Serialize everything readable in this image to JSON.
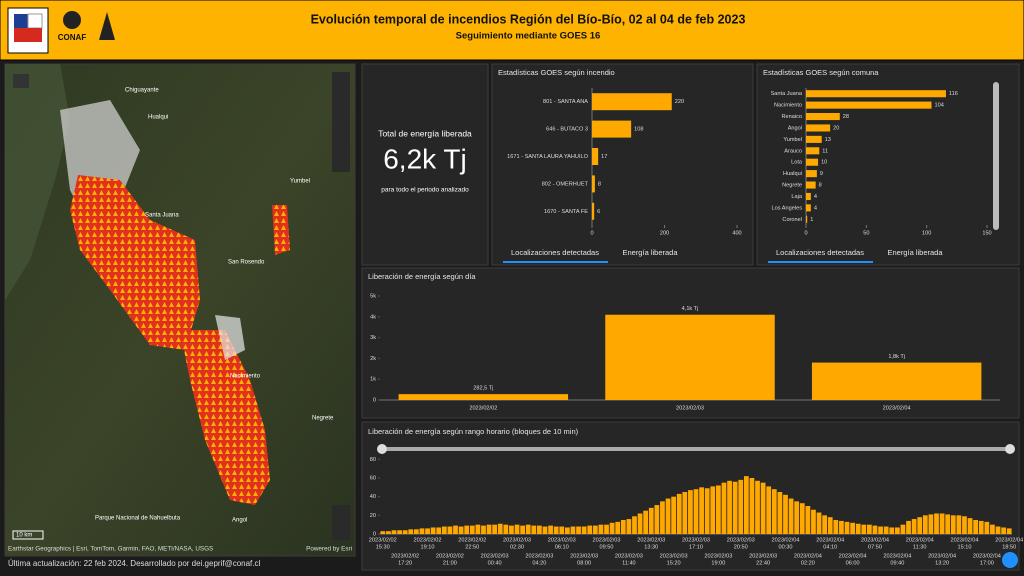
{
  "header": {
    "title": "Evolución temporal de incendios Región del Bío-Bío, 02 al 04 de feb 2023",
    "subtitle": "Seguimiento mediante GOES 16",
    "logo_text": "CONAF"
  },
  "map": {
    "labels": [
      "Chiguayante",
      "Hualqui",
      "Santa Juana",
      "San Rosendo",
      "Yumbel",
      "Nacimiento",
      "Negrete",
      "Parque Nacional de Nahuelbuta",
      "Angol"
    ],
    "scale": "10 km",
    "attribution": "Earthstar Geographics | Esri, TomTom, Garmin, FAO, METI/NASA, USGS",
    "powered": "Powered by Esri"
  },
  "footer": "Última actualización: 22 feb 2024. Desarrollado por dei.geprif@conaf.cl",
  "kpi": {
    "title": "Total de energía liberada",
    "value": "6,2k Tj",
    "subtitle": "para todo el periodo analizado"
  },
  "tabs": {
    "incendio": [
      "Localizaciones detectadas",
      "Energía liberada"
    ],
    "comuna": [
      "Localizaciones detectadas",
      "Energía liberada"
    ]
  },
  "chart_data": [
    {
      "type": "bar",
      "horizontal": true,
      "title": "Estadísticas GOES según incendio",
      "color": "#ffa800",
      "categories": [
        "801 - SANTA ANA",
        "646 - BUTACO 3",
        "1671 - SANTA LAURA YAHUILO",
        "802 - OMERHUET",
        "1670 - SANTA FE"
      ],
      "values": [
        220,
        108,
        17,
        8,
        6
      ],
      "xlim": [
        0,
        400
      ],
      "xticks": [
        0,
        200,
        400
      ]
    },
    {
      "type": "bar",
      "horizontal": true,
      "title": "Estadísticas GOES según comuna",
      "color": "#ffa800",
      "categories": [
        "Santa Juana",
        "Nacimiento",
        "Renaico",
        "Angol",
        "Yumbel",
        "Arauco",
        "Lota",
        "Hualqui",
        "Negrete",
        "Laja",
        "Los Angeles",
        "Coronel"
      ],
      "values": [
        116,
        104,
        28,
        20,
        13,
        11,
        10,
        9,
        8,
        4,
        4,
        1
      ],
      "xlim": [
        0,
        150
      ],
      "xticks": [
        0,
        50,
        100,
        150
      ]
    },
    {
      "type": "bar",
      "title": "Liberación de energía según día",
      "color": "#ffa800",
      "categories": [
        "2023/02/02",
        "2023/02/03",
        "2023/02/04"
      ],
      "values": [
        282.5,
        4100,
        1800
      ],
      "value_labels": [
        "282,5 Tj",
        "4,1k Tj",
        "1,8k Tj"
      ],
      "ylim": [
        0,
        5000
      ],
      "yticks": [
        0,
        {
          "value": 1000,
          "label": "1k"
        },
        {
          "value": 2000,
          "label": "2k"
        },
        {
          "value": 3000,
          "label": "3k"
        },
        {
          "value": 4000,
          "label": "4k"
        },
        {
          "value": 5000,
          "label": "5k"
        }
      ]
    },
    {
      "type": "bar",
      "title": "Liberación de energía según rango horario (bloques de 10 min)",
      "color": "#ffa800",
      "categories": [
        "15:30",
        null,
        null,
        null,
        "17:20",
        null,
        null,
        null,
        "19:10",
        null,
        null,
        null,
        "21:00",
        null,
        null,
        null,
        "22:50",
        null,
        null,
        null,
        "00:40",
        null,
        null,
        null,
        "02:30",
        null,
        null,
        null,
        "04:20",
        null,
        null,
        null,
        "06:10",
        null,
        null,
        null,
        "08:00",
        null,
        null,
        null,
        "09:50",
        null,
        null,
        null,
        "11:40",
        null,
        null,
        null,
        "13:30",
        null,
        null,
        null,
        "15:20",
        null,
        null,
        null,
        "17:10",
        null,
        null,
        null,
        "19:00",
        null,
        null,
        null,
        "20:50",
        null,
        null,
        null,
        "22:40",
        null,
        null,
        null,
        "00:30",
        null,
        null,
        null,
        "02:20",
        null,
        null,
        null,
        "04:10",
        null,
        null,
        null,
        "06:00",
        null,
        null,
        null,
        "07:50",
        null,
        null,
        null,
        "09:40",
        null,
        null,
        null,
        "11:30",
        null,
        null,
        null,
        "13:20",
        null,
        null,
        null,
        "15:10",
        null,
        null,
        null,
        "17:00",
        null,
        null,
        null,
        "18:50"
      ],
      "category_dates": [
        "2023/02/02",
        null,
        null,
        null,
        "2023/02/02",
        null,
        null,
        null,
        "2023/02/02",
        null,
        null,
        null,
        "2023/02/02",
        null,
        null,
        null,
        "2023/02/02",
        null,
        null,
        null,
        "2023/02/03",
        null,
        null,
        null,
        "2023/02/03",
        null,
        null,
        null,
        "2023/02/03",
        null,
        null,
        null,
        "2023/02/03",
        null,
        null,
        null,
        "2023/02/03",
        null,
        null,
        null,
        "2023/02/03",
        null,
        null,
        null,
        "2023/02/03",
        null,
        null,
        null,
        "2023/02/03",
        null,
        null,
        null,
        "2023/02/03",
        null,
        null,
        null,
        "2023/02/03",
        null,
        null,
        null,
        "2023/02/03",
        null,
        null,
        null,
        "2023/02/03",
        null,
        null,
        null,
        "2023/02/03",
        null,
        null,
        null,
        "2023/02/04",
        null,
        null,
        null,
        "2023/02/04",
        null,
        null,
        null,
        "2023/02/04",
        null,
        null,
        null,
        "2023/02/04",
        null,
        null,
        null,
        "2023/02/04",
        null,
        null,
        null,
        "2023/02/04",
        null,
        null,
        null,
        "2023/02/04",
        null,
        null,
        null,
        "2023/02/04",
        null,
        null,
        null,
        "2023/02/04",
        null,
        null,
        null,
        "2023/02/04",
        null,
        null,
        null,
        "2023/02/04"
      ],
      "values": [
        3,
        3,
        4,
        4,
        4,
        5,
        5,
        6,
        6,
        7,
        7,
        8,
        8,
        9,
        8,
        9,
        9,
        10,
        9,
        10,
        10,
        11,
        10,
        9,
        10,
        9,
        10,
        9,
        9,
        8,
        9,
        8,
        8,
        7,
        8,
        8,
        8,
        9,
        9,
        10,
        10,
        12,
        13,
        15,
        16,
        19,
        22,
        25,
        28,
        31,
        35,
        38,
        40,
        43,
        45,
        47,
        48,
        50,
        49,
        51,
        52,
        55,
        57,
        56,
        58,
        62,
        60,
        57,
        55,
        51,
        48,
        45,
        42,
        38,
        35,
        33,
        30,
        26,
        23,
        20,
        18,
        15,
        14,
        13,
        12,
        11,
        10,
        10,
        9,
        8,
        8,
        7,
        7,
        10,
        14,
        16,
        18,
        20,
        21,
        22,
        22,
        21,
        20,
        20,
        19,
        17,
        15,
        14,
        13,
        10,
        8,
        7,
        6
      ],
      "ylim": [
        0,
        90
      ],
      "yticks": [
        0,
        20,
        40,
        60,
        80
      ]
    }
  ]
}
